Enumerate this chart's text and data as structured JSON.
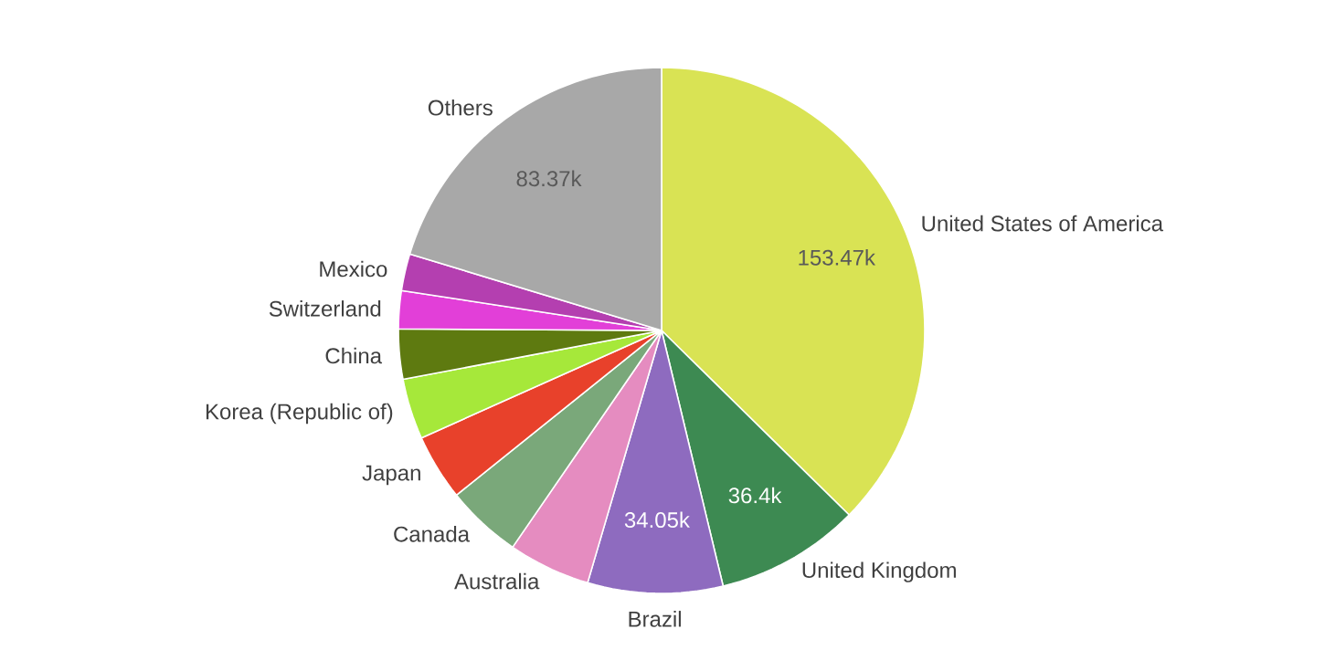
{
  "chart_data": {
    "type": "pie",
    "categories": [
      "United States of America",
      "United Kingdom",
      "Brazil",
      "Australia",
      "Canada",
      "Japan",
      "Korea (Republic of)",
      "China",
      "Switzerland",
      "Mexico",
      "Others"
    ],
    "values": [
      153.47,
      36.4,
      34.05,
      20.7,
      19.1,
      16.7,
      15.3,
      12.6,
      9.6,
      9.3,
      83.37
    ],
    "value_labels": [
      "153.47k",
      "36.4k",
      "34.05k",
      null,
      null,
      null,
      null,
      null,
      null,
      null,
      "83.37k"
    ],
    "colors": [
      "#d9e354",
      "#3d8a52",
      "#8e6bbf",
      "#e58cc0",
      "#7aa87a",
      "#e8412b",
      "#a6e83a",
      "#5e7a10",
      "#e23fd8",
      "#b43fb0",
      "#a8a8a8"
    ]
  }
}
